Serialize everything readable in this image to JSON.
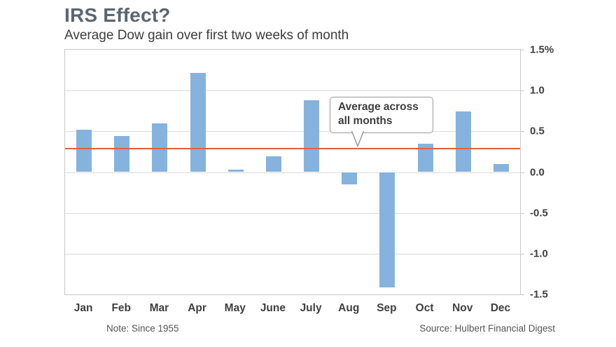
{
  "header": {
    "title": "IRS Effect?",
    "subtitle": "Average Dow gain over first two weeks of month"
  },
  "callout": {
    "text": "Average across all months"
  },
  "footer": {
    "note": "Note: Since 1955",
    "source": "Source: Hulbert Financial Digest"
  },
  "colors": {
    "bar": "#85b3dd",
    "average_line": "#e0613f",
    "title": "#5b6671",
    "text": "#3f3f3f",
    "muted": "#565656",
    "border": "#c5c8ca",
    "gridline": "#dcdcdc"
  },
  "chart_data": {
    "type": "bar",
    "title": "IRS Effect?",
    "subtitle": "Average Dow gain over first two weeks of month",
    "categories": [
      "Jan",
      "Feb",
      "Mar",
      "Apr",
      "May",
      "June",
      "July",
      "Aug",
      "Sep",
      "Oct",
      "Nov",
      "Dec"
    ],
    "values": [
      0.52,
      0.44,
      0.6,
      1.22,
      0.03,
      0.19,
      0.88,
      -0.15,
      -1.41,
      0.35,
      0.74,
      0.1
    ],
    "ylim": [
      -1.5,
      1.5
    ],
    "yticks": [
      1.5,
      1.0,
      0.5,
      0.0,
      -0.5,
      -1.0,
      -1.5
    ],
    "ytick_labels": [
      "1.5%",
      "1.0",
      "0.5",
      "0.0",
      "-0.5",
      "-1.0",
      "-1.5"
    ],
    "axis_side": "right",
    "grid": true,
    "legend": "none",
    "average_line": {
      "value": 0.29,
      "label": "Average across all months",
      "color": "#e0613f"
    },
    "note": "Note: Since 1955",
    "source": "Source: Hulbert Financial Digest"
  }
}
